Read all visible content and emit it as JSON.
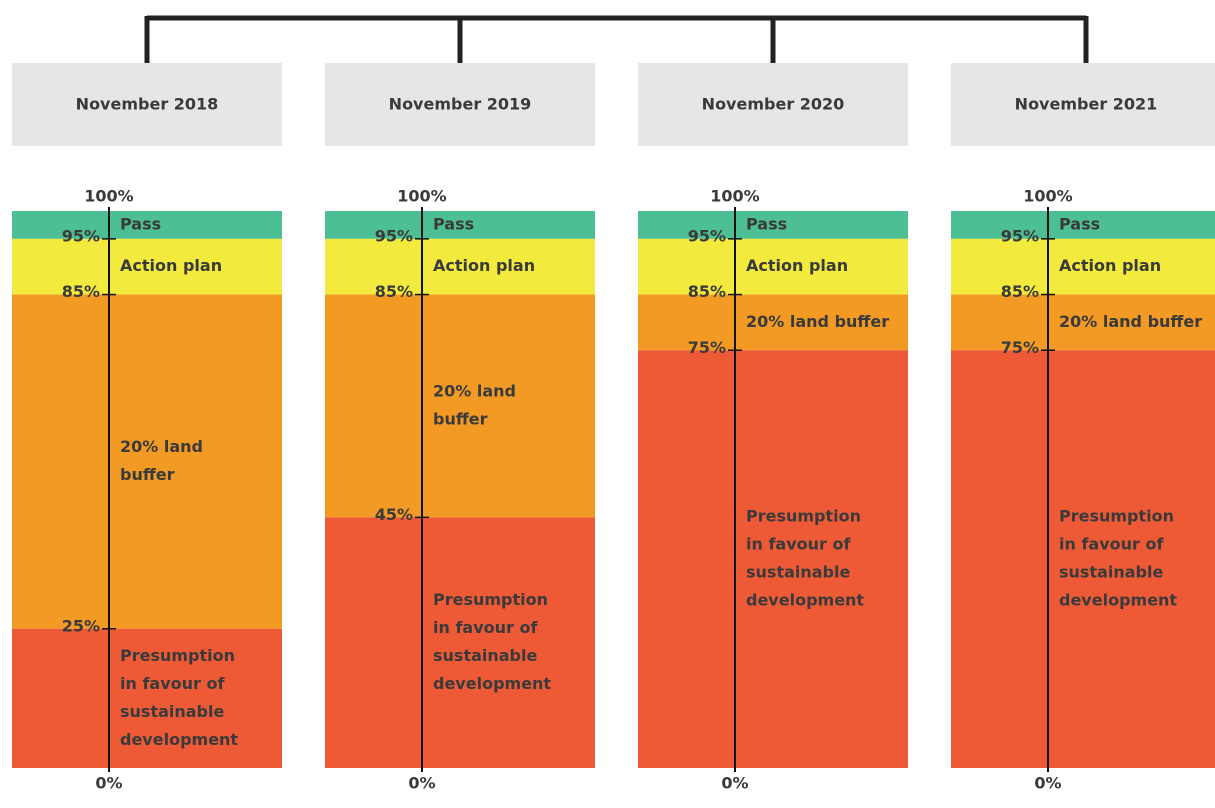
{
  "panels": [
    {
      "title": "November 2018",
      "ticks": [
        {
          "value": 100,
          "label": "100%"
        },
        {
          "value": 95,
          "label": "95%"
        },
        {
          "value": 85,
          "label": "85%"
        },
        {
          "value": 25,
          "label": "25%"
        },
        {
          "value": 0,
          "label": "0%"
        }
      ],
      "bands": [
        {
          "label": [
            "Pass"
          ],
          "color": "#4cbf94"
        },
        {
          "label": [
            "Action plan"
          ],
          "color": "#f2ea3c"
        },
        {
          "label": [
            "20% land",
            "buffer"
          ],
          "color": "#f39a25"
        },
        {
          "label": [
            "Presumption",
            "in favour of",
            "sustainable",
            "development"
          ],
          "color": "#ee5a36"
        }
      ]
    },
    {
      "title": "November 2019",
      "ticks": [
        {
          "value": 100,
          "label": "100%"
        },
        {
          "value": 95,
          "label": "95%"
        },
        {
          "value": 85,
          "label": "85%"
        },
        {
          "value": 45,
          "label": "45%"
        },
        {
          "value": 0,
          "label": "0%"
        }
      ],
      "bands": [
        {
          "label": [
            "Pass"
          ],
          "color": "#4cbf94"
        },
        {
          "label": [
            "Action plan"
          ],
          "color": "#f2ea3c"
        },
        {
          "label": [
            "20% land",
            "buffer"
          ],
          "color": "#f39a25"
        },
        {
          "label": [
            "Presumption",
            "in favour of",
            "sustainable",
            "development"
          ],
          "color": "#ee5a36"
        }
      ]
    },
    {
      "title": "November 2020",
      "ticks": [
        {
          "value": 100,
          "label": "100%"
        },
        {
          "value": 95,
          "label": "95%"
        },
        {
          "value": 85,
          "label": "85%"
        },
        {
          "value": 75,
          "label": "75%"
        },
        {
          "value": 0,
          "label": "0%"
        }
      ],
      "bands": [
        {
          "label": [
            "Pass"
          ],
          "color": "#4cbf94"
        },
        {
          "label": [
            "Action plan"
          ],
          "color": "#f2ea3c"
        },
        {
          "label": [
            "20% land buffer"
          ],
          "color": "#f39a25"
        },
        {
          "label": [
            "Presumption",
            "in favour of",
            "sustainable",
            "development"
          ],
          "color": "#ee5a36"
        }
      ]
    },
    {
      "title": "November 2021",
      "ticks": [
        {
          "value": 100,
          "label": "100%"
        },
        {
          "value": 95,
          "label": "95%"
        },
        {
          "value": 85,
          "label": "85%"
        },
        {
          "value": 75,
          "label": "75%"
        },
        {
          "value": 0,
          "label": "0%"
        }
      ],
      "bands": [
        {
          "label": [
            "Pass"
          ],
          "color": "#4cbf94"
        },
        {
          "label": [
            "Action plan"
          ],
          "color": "#f2ea3c"
        },
        {
          "label": [
            "20% land buffer"
          ],
          "color": "#f39a25"
        },
        {
          "label": [
            "Presumption",
            "in favour of",
            "sustainable",
            "development"
          ],
          "color": "#ee5a36"
        }
      ]
    }
  ]
}
